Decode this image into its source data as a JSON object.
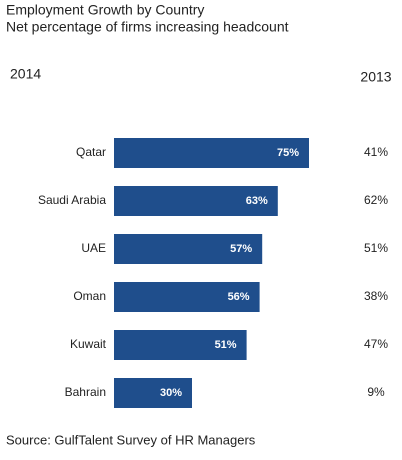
{
  "chart_data": {
    "type": "bar",
    "orientation": "horizontal",
    "title": "Employment Growth by Country",
    "subtitle": "Net percentage of firms increasing headcount",
    "categories": [
      "Qatar",
      "Saudi Arabia",
      "UAE",
      "Oman",
      "Kuwait",
      "Bahrain"
    ],
    "series": [
      {
        "name": "2014",
        "color": "#1f4e8c",
        "values": [
          75,
          63,
          57,
          56,
          51,
          30
        ],
        "value_labels": [
          "75%",
          "63%",
          "57%",
          "56%",
          "51%",
          "30%"
        ]
      },
      {
        "name": "2013",
        "values": [
          41,
          62,
          51,
          38,
          47,
          9
        ],
        "value_labels": [
          "41%",
          "62%",
          "51%",
          "38%",
          "47%",
          "9%"
        ]
      }
    ],
    "source": "Source:  GulfTalent Survey of HR Managers"
  }
}
